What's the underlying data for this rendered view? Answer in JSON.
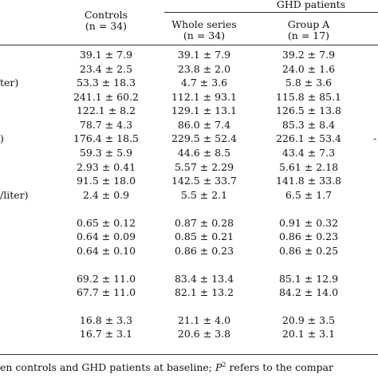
{
  "header": {
    "controls_label": "Controls",
    "controls_n": "(n = 34)",
    "ghd_label": "GHD patients",
    "whole_series_label": "Whole series",
    "whole_series_n": "(n = 34)",
    "group_a_label": "Group A",
    "group_a_n": "(n = 17)"
  },
  "rows": [
    {
      "label": "",
      "controls": "39.1 ± 7.9",
      "whole": "39.1 ± 7.9",
      "group_a": "39.2 ± 7.9",
      "right": ""
    },
    {
      "label": "",
      "controls": "23.4 ± 2.5",
      "whole": "23.8 ± 2.0",
      "group_a": "24.0 ± 1.6",
      "right": ""
    },
    {
      "label": "ter)",
      "controls": "53.3 ± 18.3",
      "whole": "4.7 ± 3.6",
      "group_a": "5.8 ± 3.6",
      "right": ""
    },
    {
      "label": "",
      "controls": "241.1 ± 60.2",
      "whole": "112.1 ± 93.1",
      "group_a": "115.8 ± 85.1",
      "right": ""
    },
    {
      "label": "",
      "controls": "122.1 ± 8.2",
      "whole": "129.1 ± 13.1",
      "group_a": "126.5 ± 13.8",
      "right": ""
    },
    {
      "label": "",
      "controls": "78.7 ± 4.3",
      "whole": "86.0 ± 7.4",
      "group_a": "85.3 ± 8.4",
      "right": ""
    },
    {
      "label": ")",
      "controls": "176.4 ± 18.5",
      "whole": "229.5 ± 52.4",
      "group_a": "226.1 ± 53.4",
      "right": "-"
    },
    {
      "label": "",
      "controls": "59.3 ± 5.9",
      "whole": "44.6 ± 8.5",
      "group_a": "43.4 ± 7.3",
      "right": ""
    },
    {
      "label": "",
      "controls": "2.93 ± 0.41",
      "whole": "5.57 ± 2.29",
      "group_a": "5.61 ± 2.18",
      "right": ""
    },
    {
      "label": "",
      "controls": "91.5 ± 18.0",
      "whole": "142.5 ± 33.7",
      "group_a": "141.8 ± 33.8",
      "right": ""
    },
    {
      "label": "/liter)",
      "controls": "2.4 ± 0.9",
      "whole": "5.5 ± 2.1",
      "group_a": "6.5 ± 1.7",
      "right": ""
    },
    {
      "label": "",
      "controls": "0.65 ± 0.12",
      "whole": "0.87 ± 0.28",
      "group_a": "0.91 ± 0.32",
      "right": ""
    },
    {
      "label": "",
      "controls": "0.64 ± 0.09",
      "whole": "0.85 ± 0.21",
      "group_a": "0.86 ± 0.23",
      "right": ""
    },
    {
      "label": "",
      "controls": "0.64 ± 0.10",
      "whole": "0.86 ± 0.23",
      "group_a": "0.86 ± 0.25",
      "right": ""
    },
    {
      "label": "",
      "controls": "69.2 ± 11.0",
      "whole": "83.4 ± 13.4",
      "group_a": "85.1 ± 12.9",
      "right": ""
    },
    {
      "label": "",
      "controls": "67.7 ± 11.0",
      "whole": "82.1 ± 13.2",
      "group_a": "84.2 ± 14.0",
      "right": ""
    },
    {
      "label": "",
      "controls": "16.8 ± 3.3",
      "whole": "21.1 ± 4.0",
      "group_a": "20.9 ± 3.5",
      "right": ""
    },
    {
      "label": "",
      "controls": "16.7 ± 3.1",
      "whole": "20.6 ± 3.8",
      "group_a": "20.1 ± 3.1",
      "right": ""
    }
  ],
  "footnote": {
    "before": "en controls and GHD patients at baseline; ",
    "p": "P",
    "sup": "2",
    "after": " refers to the compar"
  }
}
